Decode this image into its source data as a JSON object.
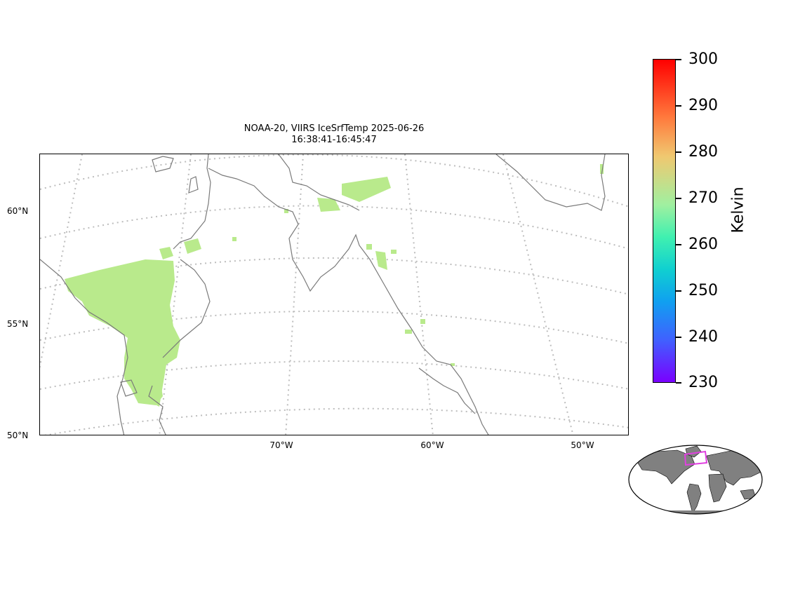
{
  "title": {
    "line1": "NOAA-20, VIIRS IceSrfTemp 2025-06-26",
    "line2": "16:38:41-16:45:47"
  },
  "map": {
    "lat_labels": [
      "60°N",
      "55°N",
      "50°N"
    ],
    "lon_labels": [
      "70°W",
      "60°W",
      "50°W"
    ],
    "data_color": "#b9ea8c",
    "coast_color": "#7a7a7a",
    "grid_color": "#bdbdbd"
  },
  "colorbar": {
    "label": "Kelvin",
    "min": 230,
    "max": 300,
    "ticks": [
      "300",
      "290",
      "280",
      "270",
      "260",
      "250",
      "240",
      "230"
    ],
    "colormap": "rainbow"
  },
  "inset": {
    "land_color": "#808080",
    "box_color": "#e040e0"
  }
}
